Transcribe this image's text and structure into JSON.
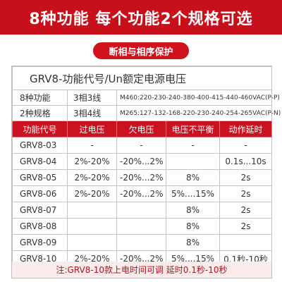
{
  "banner": {
    "title": "8种功能 每个功能2个规格可选"
  },
  "pill": {
    "label": "断相与相序保护"
  },
  "table": {
    "title": "GRV8-功能代号/Un额定电源电压",
    "info": [
      {
        "label": "8种功能",
        "value": "3相3线",
        "code": "M460:220-230-240-380-400-415-440-460VAC(P-P)"
      },
      {
        "label": "2种规格",
        "value": "3相4线",
        "code": "M265:127-132-168-220-230-240-254-265VAC(P-N)"
      }
    ],
    "headers": [
      "功能代号",
      "过电压",
      "欠电压",
      "电压不平衡",
      "动作延时"
    ],
    "rows": [
      [
        "GRV8-03",
        "-",
        "-",
        "-",
        "-"
      ],
      [
        "GRV8-04",
        "2%-20%",
        "-20%...2%",
        "",
        "0.1s...10s"
      ],
      [
        "GRV8-05",
        "2%-20%",
        "-20%...2%",
        "8%",
        "2s"
      ],
      [
        "GRV8-06",
        "2%-20%",
        "-20%...2%",
        "5%....15%",
        "2s"
      ],
      [
        "GRV8-07",
        "",
        "",
        "8%",
        "2s"
      ],
      [
        "GRV8-08",
        "",
        "",
        "8%",
        "2s"
      ],
      [
        "GRV8-09",
        "",
        "",
        "8%",
        ""
      ],
      [
        "GRV8-10",
        "2%-20%",
        "-20%...2%",
        "5%....15%",
        "0.1秒-10秒"
      ]
    ],
    "note": "注:GRV8-10款上电时间可调 延时0.1秒-10秒"
  },
  "colors": {
    "accent": "#c8101d",
    "note_bg": "#fbecec",
    "border": "#c4c4c4"
  }
}
